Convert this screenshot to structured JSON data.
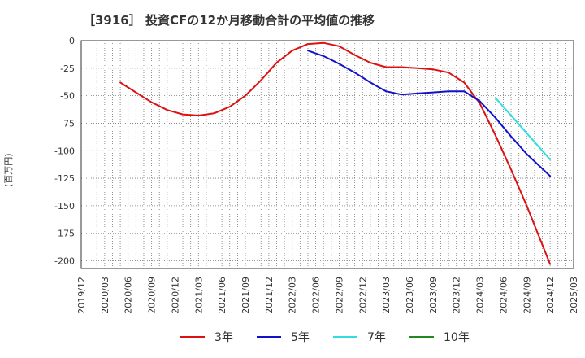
{
  "chart_data": {
    "type": "line",
    "title": "［3916］ 投資CFの12か月移動合計の平均値の推移",
    "ylabel": "(百万円)",
    "xlabel": "",
    "ylim": [
      -207,
      0
    ],
    "yticks": [
      0,
      -25,
      -50,
      -75,
      -100,
      -125,
      -150,
      -175,
      -200
    ],
    "xticks": [
      "2019/12",
      "2020/03",
      "2020/06",
      "2020/09",
      "2020/12",
      "2021/03",
      "2021/06",
      "2021/09",
      "2021/12",
      "2022/03",
      "2022/06",
      "2022/09",
      "2022/12",
      "2023/03",
      "2023/06",
      "2023/09",
      "2023/12",
      "2024/03",
      "2024/06",
      "2024/09",
      "2024/12",
      "2025/03"
    ],
    "grid": true,
    "legend_position": "bottom",
    "series": [
      {
        "name": "3年",
        "color": "#dd1111",
        "points": [
          [
            "2020/05",
            -38
          ],
          [
            "2020/07",
            -47
          ],
          [
            "2020/09",
            -56
          ],
          [
            "2020/11",
            -63
          ],
          [
            "2021/01",
            -67
          ],
          [
            "2021/03",
            -68
          ],
          [
            "2021/05",
            -66
          ],
          [
            "2021/07",
            -60
          ],
          [
            "2021/09",
            -50
          ],
          [
            "2021/11",
            -36
          ],
          [
            "2022/01",
            -20
          ],
          [
            "2022/03",
            -9
          ],
          [
            "2022/05",
            -3
          ],
          [
            "2022/07",
            -2
          ],
          [
            "2022/09",
            -5
          ],
          [
            "2022/11",
            -13
          ],
          [
            "2023/01",
            -20
          ],
          [
            "2023/03",
            -24
          ],
          [
            "2023/05",
            -24
          ],
          [
            "2023/07",
            -25
          ],
          [
            "2023/09",
            -26
          ],
          [
            "2023/11",
            -29
          ],
          [
            "2024/01",
            -38
          ],
          [
            "2024/03",
            -57
          ],
          [
            "2024/05",
            -86
          ],
          [
            "2024/07",
            -117
          ],
          [
            "2024/09",
            -150
          ],
          [
            "2024/12",
            -203
          ]
        ]
      },
      {
        "name": "5年",
        "color": "#1111cc",
        "points": [
          [
            "2022/05",
            -9
          ],
          [
            "2022/07",
            -14
          ],
          [
            "2022/09",
            -21
          ],
          [
            "2022/11",
            -29
          ],
          [
            "2023/01",
            -38
          ],
          [
            "2023/03",
            -46
          ],
          [
            "2023/05",
            -49
          ],
          [
            "2023/07",
            -48
          ],
          [
            "2023/09",
            -47
          ],
          [
            "2023/11",
            -46
          ],
          [
            "2024/01",
            -46
          ],
          [
            "2024/03",
            -55
          ],
          [
            "2024/05",
            -70
          ],
          [
            "2024/07",
            -87
          ],
          [
            "2024/09",
            -103
          ],
          [
            "2024/12",
            -123
          ]
        ]
      },
      {
        "name": "7年",
        "color": "#33dddd",
        "points": [
          [
            "2024/05",
            -52
          ],
          [
            "2024/12",
            -108
          ]
        ]
      },
      {
        "name": "10年",
        "color": "#228822",
        "points": []
      }
    ]
  }
}
